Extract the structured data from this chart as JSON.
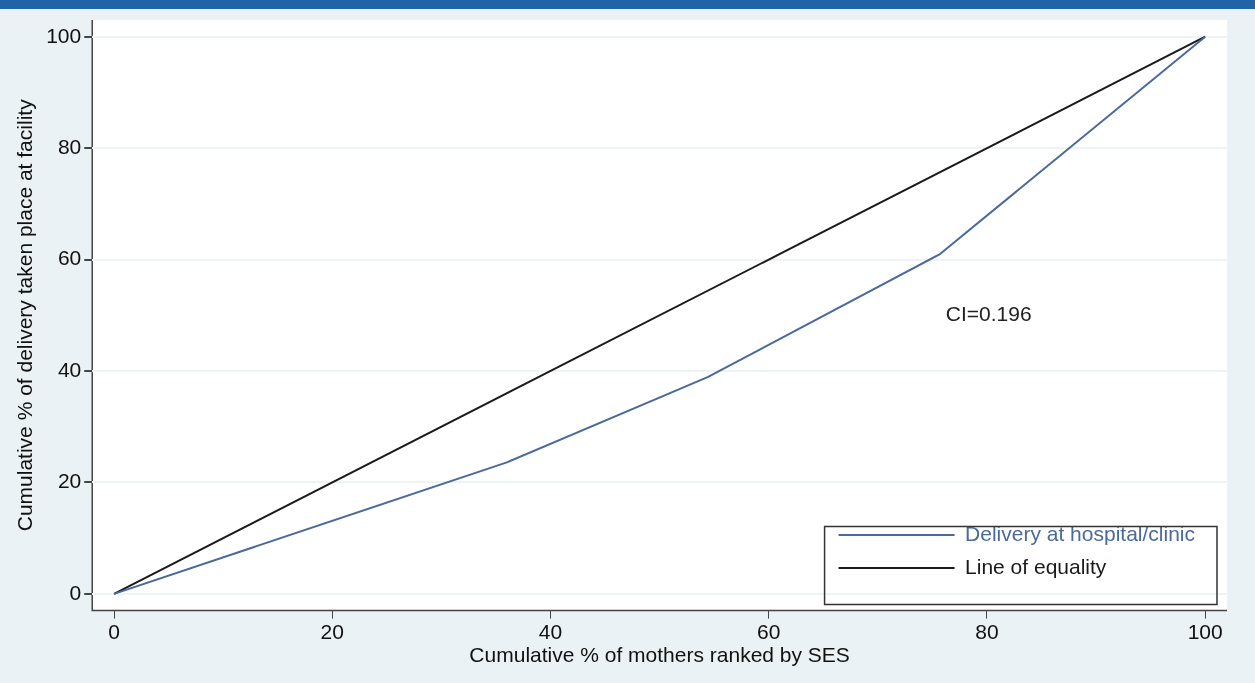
{
  "chart_data": {
    "type": "line",
    "xlabel": "Cumulative % of mothers ranked by SES",
    "ylabel": "Cumulative % of delivery taken place at facility",
    "xlim": [
      -2,
      102
    ],
    "xticks": [
      0,
      20,
      40,
      60,
      80,
      100
    ],
    "ylim": [
      -3,
      103
    ],
    "yticks": [
      0,
      20,
      40,
      60,
      80,
      100
    ],
    "grid": "y",
    "legend": "bottom right",
    "marker": "none",
    "line_style": "solid",
    "annotations": [
      "CI=0.196"
    ],
    "series": [
      {
        "name": "Delivery at hospital/clinic",
        "color": "#4a6a9c",
        "x": [
          0,
          36,
          54.4,
          75.7,
          100
        ],
        "values": [
          0,
          23.6,
          38.9,
          61,
          100
        ]
      },
      {
        "name": "Line of equality",
        "color": "#1a1a1a",
        "x": [
          0,
          100
        ],
        "values": [
          0,
          100
        ]
      }
    ]
  }
}
